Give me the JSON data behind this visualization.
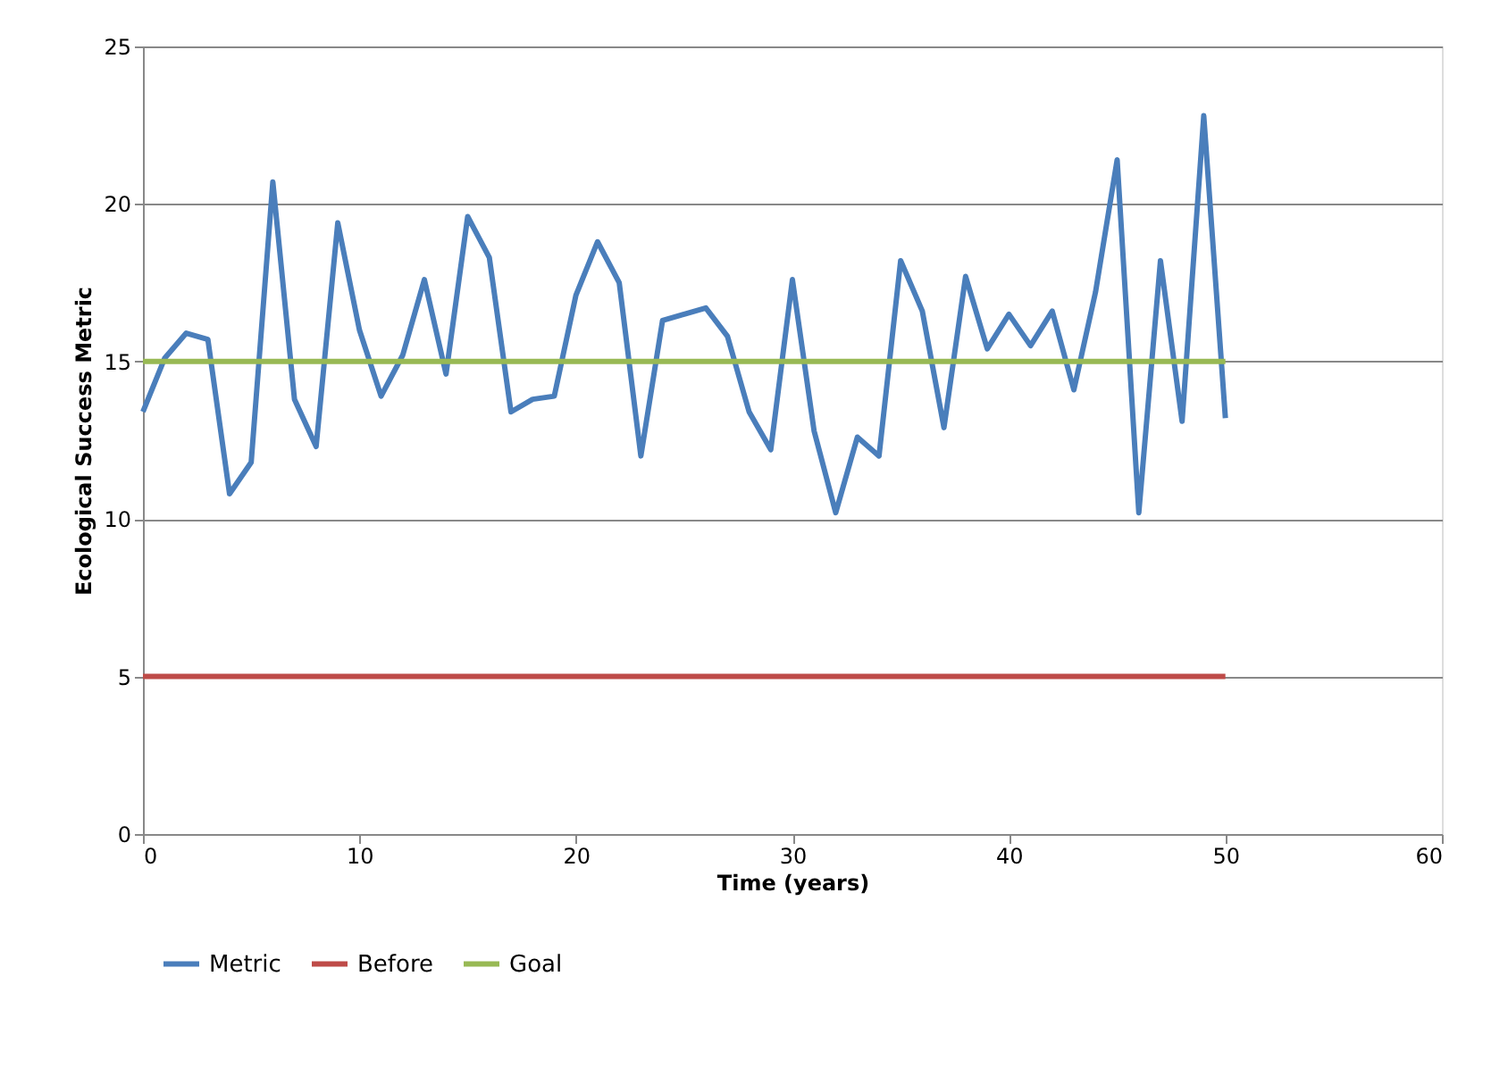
{
  "chart_data": {
    "type": "line",
    "xlabel": "Time (years)",
    "ylabel": "Ecological  Success Metric",
    "xlim": [
      0,
      60
    ],
    "xticks": [
      0,
      10,
      20,
      30,
      40,
      50,
      60
    ],
    "ylim": [
      0,
      25
    ],
    "yticks": [
      0,
      5,
      10,
      15,
      20,
      25
    ],
    "grid": "y",
    "legend": "bottom",
    "marker": "none",
    "line_style": "solid",
    "series": [
      {
        "name": "Metric",
        "color": "#4a7ebb",
        "x": [
          0,
          1,
          2,
          3,
          4,
          5,
          6,
          7,
          8,
          9,
          10,
          11,
          12,
          13,
          14,
          15,
          16,
          17,
          18,
          19,
          20,
          21,
          22,
          23,
          24,
          25,
          26,
          27,
          28,
          29,
          30,
          31,
          32,
          33,
          34,
          35,
          36,
          37,
          38,
          39,
          40,
          41,
          42,
          43,
          44,
          45,
          46,
          47,
          48,
          49,
          50
        ],
        "values": [
          13.4,
          15.1,
          15.9,
          15.7,
          10.8,
          11.8,
          20.7,
          13.8,
          12.3,
          19.4,
          16.0,
          13.9,
          15.2,
          17.6,
          14.6,
          19.6,
          18.3,
          13.4,
          13.8,
          13.9,
          17.1,
          18.8,
          17.5,
          12.0,
          16.3,
          16.5,
          16.7,
          15.8,
          13.4,
          12.2,
          17.6,
          12.8,
          10.2,
          12.6,
          12.0,
          18.2,
          16.6,
          12.9,
          17.7,
          15.4,
          16.5,
          15.5,
          16.6,
          14.1,
          17.2,
          21.4,
          10.2,
          18.2,
          13.1,
          22.8,
          13.2
        ]
      },
      {
        "name": "Before",
        "color": "#be4b48",
        "x": [
          0,
          50
        ],
        "values": [
          5,
          5
        ]
      },
      {
        "name": "Goal",
        "color": "#98b954",
        "x": [
          0,
          50
        ],
        "values": [
          15,
          15
        ]
      }
    ]
  }
}
